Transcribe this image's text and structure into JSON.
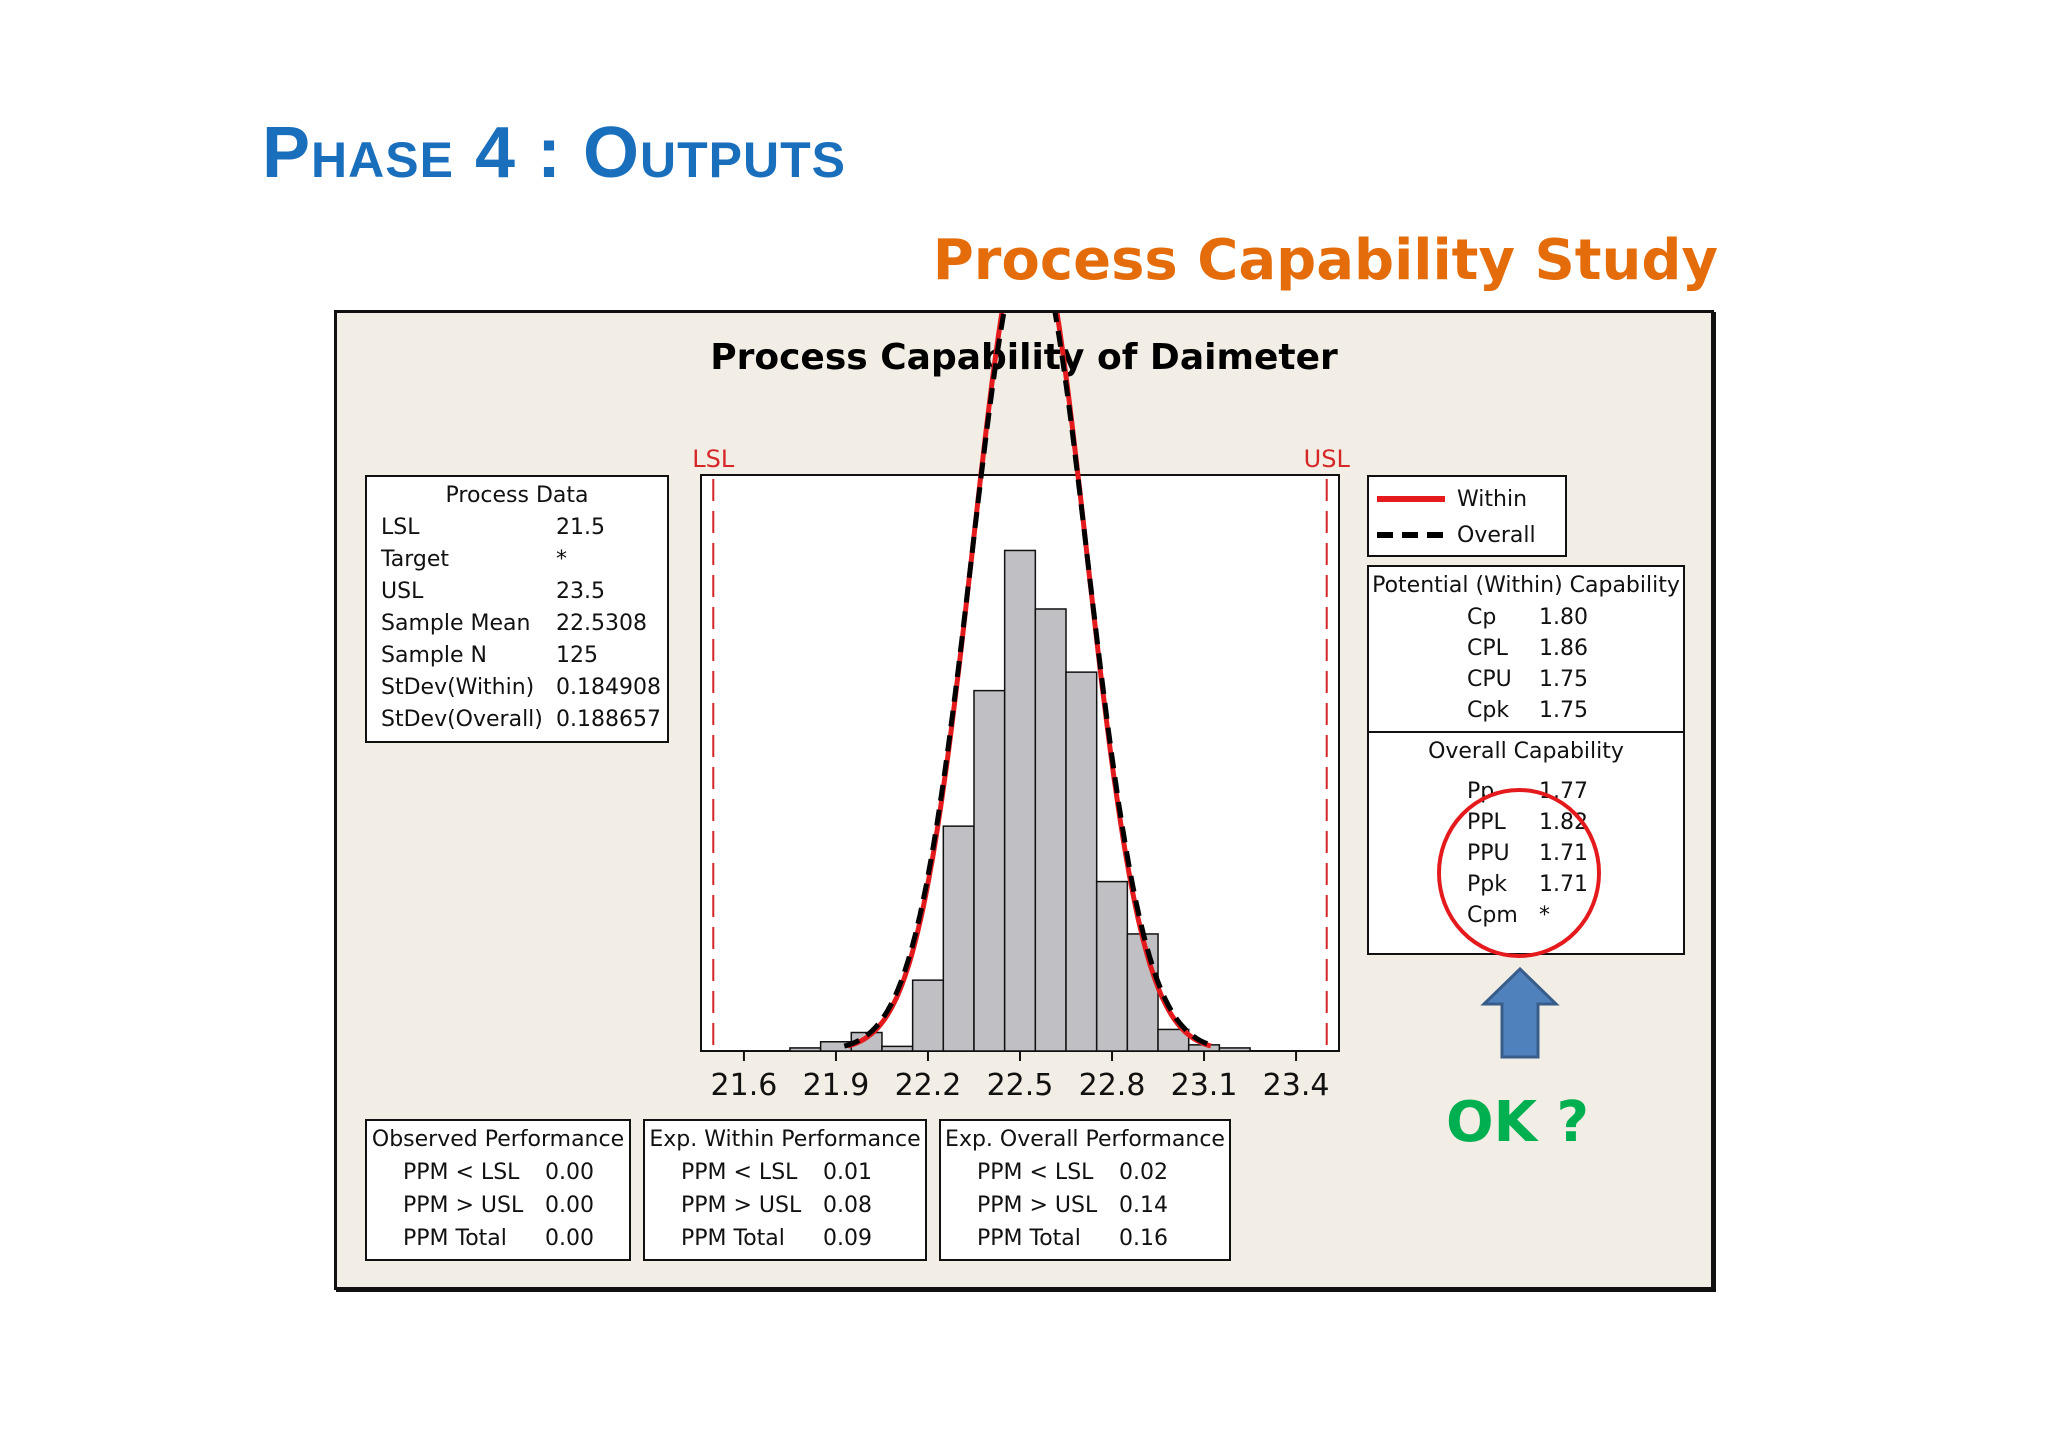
{
  "slide": {
    "title": "Phase 4 : Outputs",
    "subtitle": "Process Capability Study",
    "callout": "OK ?"
  },
  "colors": {
    "title": "#1a6fbd",
    "subtitle": "#e46c0a",
    "callout": "#00b050",
    "within_curve": "#e41a1c",
    "overall_curve": "#000000",
    "spec_limits": "#d62728",
    "bars": "#c0c0c4",
    "arrow": "#4f81bd",
    "circle": "#e41a1c"
  },
  "process_data": {
    "title": "Process Data",
    "rows": [
      {
        "label": "LSL",
        "value": "21.5"
      },
      {
        "label": "Target",
        "value": "*"
      },
      {
        "label": "USL",
        "value": "23.5"
      },
      {
        "label": "Sample Mean",
        "value": "22.5308"
      },
      {
        "label": "Sample N",
        "value": "125"
      },
      {
        "label": "StDev(Within)",
        "value": "0.184908"
      },
      {
        "label": "StDev(Overall)",
        "value": "0.188657"
      }
    ]
  },
  "legend": {
    "within": "Within",
    "overall": "Overall"
  },
  "potential": {
    "title": "Potential (Within) Capability",
    "rows": [
      {
        "label": "Cp",
        "value": "1.80"
      },
      {
        "label": "CPL",
        "value": "1.86"
      },
      {
        "label": "CPU",
        "value": "1.75"
      },
      {
        "label": "Cpk",
        "value": "1.75"
      }
    ]
  },
  "overall_cap": {
    "title": "Overall Capability",
    "rows": [
      {
        "label": "Pp",
        "value": "1.77"
      },
      {
        "label": "PPL",
        "value": "1.82"
      },
      {
        "label": "PPU",
        "value": "1.71"
      },
      {
        "label": "Ppk",
        "value": "1.71"
      },
      {
        "label": "Cpm",
        "value": "*"
      }
    ]
  },
  "observed": {
    "title": "Observed Performance",
    "rows": [
      {
        "label": "PPM < LSL",
        "value": "0.00"
      },
      {
        "label": "PPM > USL",
        "value": "0.00"
      },
      {
        "label": "PPM Total",
        "value": "0.00"
      }
    ]
  },
  "exp_within": {
    "title": "Exp. Within Performance",
    "rows": [
      {
        "label": "PPM < LSL",
        "value": "0.01"
      },
      {
        "label": "PPM > USL",
        "value": "0.08"
      },
      {
        "label": "PPM Total",
        "value": "0.09"
      }
    ]
  },
  "exp_overall": {
    "title": "Exp. Overall Performance",
    "rows": [
      {
        "label": "PPM < LSL",
        "value": "0.02"
      },
      {
        "label": "PPM > USL",
        "value": "0.14"
      },
      {
        "label": "PPM Total",
        "value": "0.16"
      }
    ]
  },
  "chart_data": {
    "type": "bar",
    "title": "Process Capability of Daimeter",
    "xlabel": "",
    "ylabel": "",
    "bin_width": 0.1,
    "bin_starts": [
      21.75,
      21.85,
      21.95,
      22.05,
      22.15,
      22.25,
      22.35,
      22.45,
      22.55,
      22.65,
      22.75,
      22.85,
      22.95,
      23.05,
      23.15
    ],
    "values": [
      0.1,
      0.3,
      0.6,
      0.15,
      2.3,
      7.3,
      11.7,
      16.25,
      14.35,
      12.3,
      5.5,
      3.8,
      0.7,
      0.2,
      0.1
    ],
    "x_ticks": [
      21.6,
      21.9,
      22.2,
      22.5,
      22.8,
      23.1,
      23.4
    ],
    "tick_labels": [
      "21.6",
      "21.9",
      "22.2",
      "22.5",
      "22.8",
      "23.1",
      "23.4"
    ],
    "xlim": [
      21.46,
      23.54
    ],
    "ylim": [
      0,
      18.7
    ],
    "spec_limits": [
      {
        "name": "LSL",
        "value": 21.5
      },
      {
        "name": "USL",
        "value": 23.5
      }
    ],
    "curves": [
      {
        "name": "Within",
        "mean": 22.5308,
        "stdev": 0.184908,
        "style": "solid"
      },
      {
        "name": "Overall",
        "mean": 22.5308,
        "stdev": 0.188657,
        "style": "dashed"
      }
    ],
    "sample_n": 125,
    "grid": false,
    "legend_position": "top-right"
  }
}
